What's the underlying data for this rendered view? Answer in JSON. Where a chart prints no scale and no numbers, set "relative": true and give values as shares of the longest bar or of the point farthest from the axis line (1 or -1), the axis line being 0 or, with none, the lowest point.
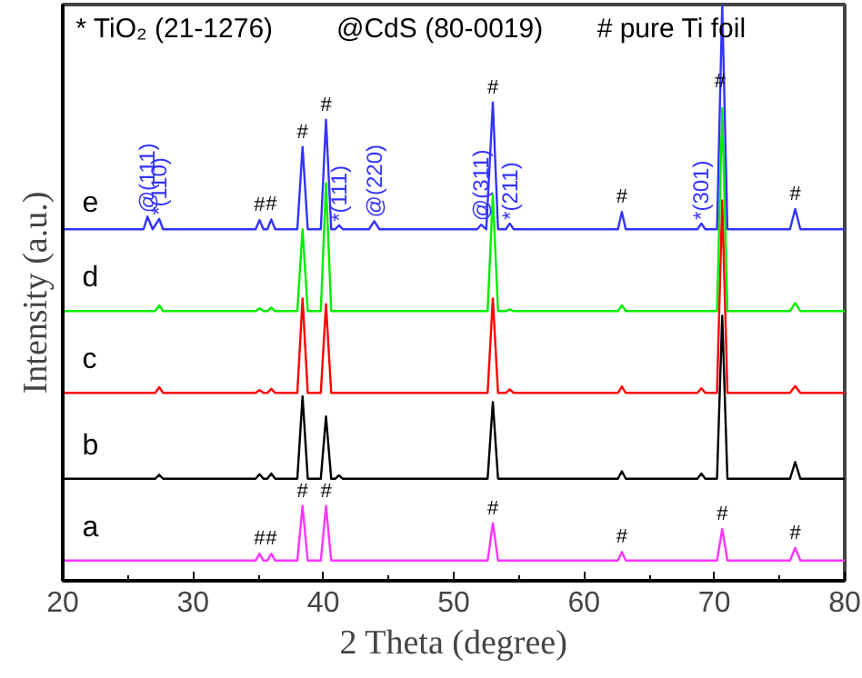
{
  "chart_data": {
    "type": "line",
    "relative": true,
    "xlabel": "2 Theta (degree)",
    "ylabel": "Intensity (a.u.)",
    "xlim": [
      20,
      80
    ],
    "xticks": [
      20,
      30,
      40,
      50,
      60,
      70,
      80
    ],
    "tick_labels": "x",
    "grid": false,
    "series": [
      {
        "name": "a",
        "color": "#ff33ff",
        "x": [
          20,
          34.8,
          35.1,
          35.4,
          35.7,
          36.0,
          36.3,
          38.0,
          38.4,
          38.8,
          39.8,
          40.2,
          40.6,
          52.6,
          53.0,
          53.4,
          62.6,
          62.9,
          63.2,
          70.2,
          70.6,
          71.0,
          75.8,
          76.2,
          76.6,
          80
        ],
        "values": [
          0.035,
          0.035,
          0.047,
          0.035,
          0.035,
          0.047,
          0.035,
          0.035,
          0.13,
          0.035,
          0.035,
          0.13,
          0.035,
          0.035,
          0.1,
          0.035,
          0.035,
          0.05,
          0.035,
          0.035,
          0.09,
          0.035,
          0.035,
          0.057,
          0.035,
          0.035
        ]
      },
      {
        "name": "b",
        "color": "#000000",
        "x": [
          20,
          27.1,
          27.4,
          27.7,
          34.8,
          35.1,
          35.4,
          35.7,
          36.0,
          36.3,
          38.0,
          38.4,
          38.8,
          39.8,
          40.2,
          40.6,
          40.9,
          41.2,
          41.5,
          52.6,
          53.0,
          53.4,
          62.6,
          62.9,
          63.2,
          68.7,
          69.0,
          69.3,
          70.2,
          70.6,
          71.0,
          75.8,
          76.2,
          76.6,
          80
        ],
        "values": [
          0.177,
          0.177,
          0.184,
          0.177,
          0.177,
          0.185,
          0.177,
          0.177,
          0.186,
          0.177,
          0.177,
          0.32,
          0.177,
          0.177,
          0.285,
          0.177,
          0.177,
          0.183,
          0.177,
          0.177,
          0.31,
          0.177,
          0.177,
          0.19,
          0.177,
          0.177,
          0.186,
          0.177,
          0.177,
          0.46,
          0.177,
          0.177,
          0.206,
          0.177,
          0.177
        ]
      },
      {
        "name": "c",
        "color": "#ff0000",
        "x": [
          20,
          27.1,
          27.4,
          27.7,
          34.8,
          35.1,
          35.4,
          35.7,
          36.0,
          36.3,
          38.0,
          38.4,
          38.8,
          39.8,
          40.2,
          40.6,
          52.6,
          53.0,
          53.4,
          54.0,
          54.3,
          54.6,
          62.6,
          62.9,
          63.2,
          68.7,
          69.0,
          69.3,
          70.2,
          70.6,
          71.0,
          75.8,
          76.2,
          76.6,
          80
        ],
        "values": [
          0.326,
          0.326,
          0.336,
          0.326,
          0.326,
          0.331,
          0.326,
          0.326,
          0.333,
          0.326,
          0.326,
          0.49,
          0.326,
          0.326,
          0.48,
          0.326,
          0.326,
          0.49,
          0.326,
          0.326,
          0.332,
          0.326,
          0.326,
          0.337,
          0.326,
          0.326,
          0.334,
          0.326,
          0.326,
          0.66,
          0.326,
          0.326,
          0.338,
          0.326,
          0.326
        ]
      },
      {
        "name": "d",
        "color": "#00ee00",
        "x": [
          20,
          27.1,
          27.4,
          27.7,
          34.8,
          35.1,
          35.4,
          35.7,
          36.0,
          36.3,
          38.0,
          38.4,
          38.8,
          39.8,
          40.2,
          40.6,
          52.6,
          53.0,
          53.4,
          54.0,
          54.3,
          54.6,
          62.6,
          62.9,
          63.2,
          70.2,
          70.6,
          71.0,
          75.8,
          76.2,
          76.6,
          80
        ],
        "values": [
          0.468,
          0.468,
          0.478,
          0.468,
          0.468,
          0.473,
          0.468,
          0.468,
          0.474,
          0.468,
          0.468,
          0.61,
          0.468,
          0.468,
          0.69,
          0.468,
          0.468,
          0.67,
          0.468,
          0.468,
          0.471,
          0.468,
          0.468,
          0.478,
          0.468,
          0.468,
          0.82,
          0.468,
          0.468,
          0.482,
          0.468,
          0.468
        ]
      },
      {
        "name": "e",
        "color": "#3333ff",
        "x": [
          20,
          26.2,
          26.5,
          26.9,
          27.4,
          27.7,
          34.8,
          35.1,
          35.4,
          35.7,
          36.0,
          36.3,
          38.0,
          38.4,
          38.8,
          39.8,
          40.2,
          40.6,
          40.9,
          41.2,
          41.5,
          43.5,
          43.9,
          44.3,
          51.8,
          52.1,
          52.5,
          53.0,
          53.4,
          54.0,
          54.3,
          54.6,
          62.6,
          62.9,
          63.2,
          68.7,
          69.0,
          69.3,
          70.2,
          70.6,
          71.0,
          75.8,
          76.2,
          76.6,
          80
        ],
        "values": [
          0.61,
          0.61,
          0.632,
          0.61,
          0.628,
          0.61,
          0.61,
          0.626,
          0.61,
          0.61,
          0.627,
          0.61,
          0.61,
          0.753,
          0.61,
          0.61,
          0.8,
          0.61,
          0.61,
          0.617,
          0.61,
          0.61,
          0.624,
          0.61,
          0.61,
          0.618,
          0.61,
          0.83,
          0.61,
          0.61,
          0.62,
          0.61,
          0.61,
          0.64,
          0.61,
          0.61,
          0.62,
          0.61,
          0.61,
          1.0,
          0.61,
          0.61,
          0.645,
          0.61,
          0.61
        ]
      }
    ],
    "annotations": [
      "* TiO₂ (21-1276)",
      "@CdS (80-0019)",
      "# pure Ti foil",
      {
        "text": "#",
        "x": 35.1,
        "y": 0.047
      },
      {
        "text": "#",
        "x": 36.0,
        "y": 0.047
      },
      {
        "text": "#",
        "x": 38.4,
        "y": 0.13
      },
      {
        "text": "#",
        "x": 40.2,
        "y": 0.13
      },
      {
        "text": "#",
        "x": 53.0,
        "y": 0.1
      },
      {
        "text": "#",
        "x": 62.9,
        "y": 0.05
      },
      {
        "text": "#",
        "x": 70.6,
        "y": 0.09
      },
      {
        "text": "#",
        "x": 76.2,
        "y": 0.057
      },
      {
        "text": "#",
        "x": 35.1,
        "y": 0.626
      },
      {
        "text": "#",
        "x": 36.0,
        "y": 0.627
      },
      {
        "text": "#",
        "x": 38.4,
        "y": 0.753
      },
      {
        "text": "#",
        "x": 40.2,
        "y": 0.8
      },
      {
        "text": "#",
        "x": 53.0,
        "y": 0.83
      },
      {
        "text": "#",
        "x": 62.9,
        "y": 0.64
      },
      {
        "text": "#",
        "x": 70.44,
        "y": 0.84
      },
      {
        "text": "#",
        "x": 76.2,
        "y": 0.645
      },
      {
        "text": "@(111)",
        "x": 26.5,
        "y": 0.632
      },
      {
        "text": "*(110)",
        "x": 27.4,
        "y": 0.628
      },
      {
        "text": "*(111)",
        "x": 41.2,
        "y": 0.617
      },
      {
        "text": "@(220)",
        "x": 43.9,
        "y": 0.624
      },
      {
        "text": "@(311)",
        "x": 52.1,
        "y": 0.618
      },
      {
        "text": "*(211)",
        "x": 54.3,
        "y": 0.62
      },
      {
        "text": "*(301)",
        "x": 69.0,
        "y": 0.62
      }
    ]
  }
}
